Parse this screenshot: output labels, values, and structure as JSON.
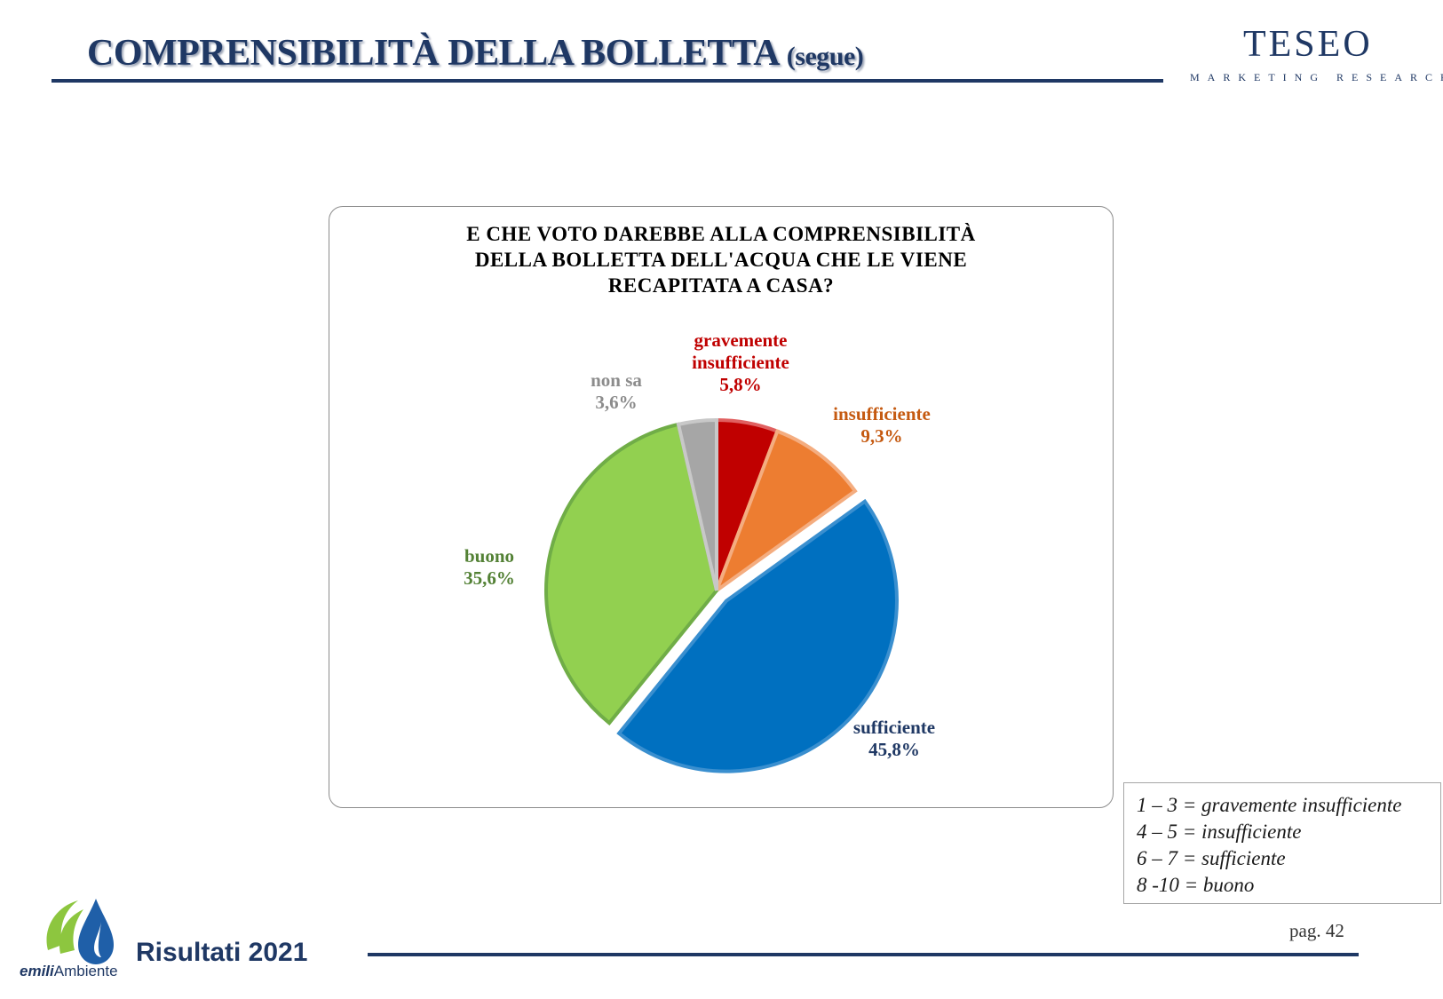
{
  "header": {
    "title": "COMPRENSIBILITÀ DELLA BOLLETTA",
    "title_suffix": "(segue)",
    "brand": "TESEO",
    "brand_tagline": "MARKETING RESEARCH"
  },
  "chart_data": {
    "type": "pie",
    "title_lines": [
      "E CHE VOTO DAREBBE ALLA COMPRENSIBILITÀ",
      "DELLA BOLLETTA DELL'ACQUA CHE LE VIENE",
      "RECAPITATA A CASA?"
    ],
    "slices": [
      {
        "label_lines": [
          "gravemente",
          "insufficiente"
        ],
        "pct_label": "5,8%",
        "value": 5.8,
        "color": "#c00000",
        "stroke": "#e06060"
      },
      {
        "label_lines": [
          "insufficiente"
        ],
        "pct_label": "9,3%",
        "value": 9.3,
        "color": "#ed7d31",
        "stroke": "#f4ad80"
      },
      {
        "label_lines": [
          "sufficiente"
        ],
        "pct_label": "45,8%",
        "value": 45.8,
        "color": "#0070c0",
        "stroke": "#3a8fcf"
      },
      {
        "label_lines": [
          "buono"
        ],
        "pct_label": "35,6%",
        "value": 35.6,
        "color": "#92d050",
        "stroke": "#70ad47"
      },
      {
        "label_lines": [
          "non sa"
        ],
        "pct_label": "3,6%",
        "value": 3.6,
        "color": "#a6a6a6",
        "stroke": "#c8c8c8"
      }
    ],
    "label_colors": [
      "#c00000",
      "#c55a11",
      "#1f3864",
      "#538135",
      "#8c8c8c"
    ]
  },
  "legend_box": {
    "lines": [
      "1 – 3 = gravemente insufficiente",
      "4 – 5 = insufficiente",
      "6 – 7 = sufficiente",
      "8 -10 = buono"
    ]
  },
  "footer": {
    "label": "Risultati 2021",
    "page": "pag. 42",
    "logo_text_bold": "emili",
    "logo_text_rest": "Ambiente",
    "logo_color_green": "#8dc63f",
    "logo_color_blue": "#1f5fa8"
  }
}
